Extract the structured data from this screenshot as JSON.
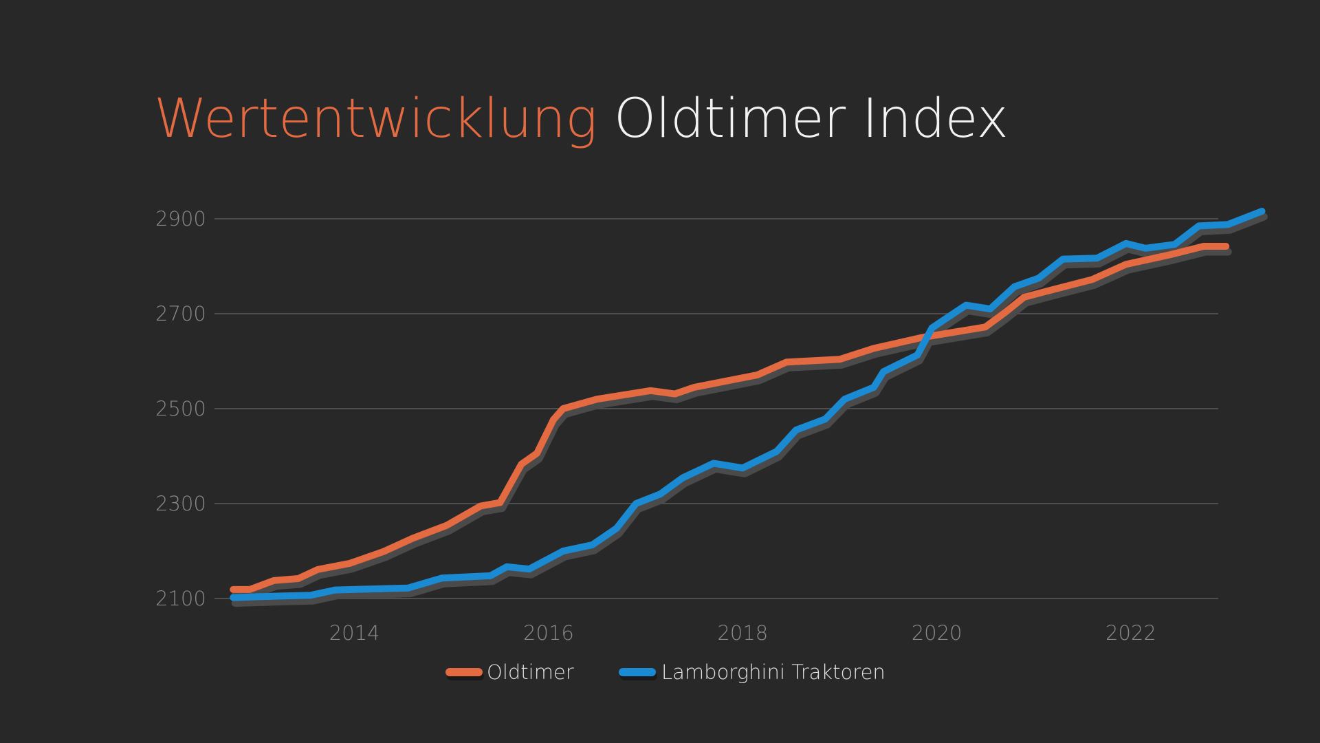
{
  "title": {
    "accent": "Wertentwicklung",
    "rest": "Oldtimer Index"
  },
  "colors": {
    "background": "#282828",
    "Oldtimer": "#e46a41",
    "Lamborghini Traktoren": "#1a8bd3",
    "shadow": "#4a4a4a",
    "grid": "#4e4e4e"
  },
  "chart_data": {
    "type": "line",
    "title": "Wertentwicklung Oldtimer Index",
    "xlabel": "",
    "ylabel": "",
    "xlim": [
      2012.6,
      2022.9
    ],
    "ylim": [
      2100,
      2950
    ],
    "grid": true,
    "legend_position": "bottom-center",
    "x_ticks": [
      {
        "value": 2014,
        "label": "2014"
      },
      {
        "value": 2016,
        "label": "2016"
      },
      {
        "value": 2018,
        "label": "2018"
      },
      {
        "value": 2020,
        "label": "2020"
      },
      {
        "value": 2022,
        "label": "2022"
      }
    ],
    "y_ticks": [
      {
        "value": 2100,
        "label": "2100"
      },
      {
        "value": 2300,
        "label": "2300"
      },
      {
        "value": 2500,
        "label": "2500"
      },
      {
        "value": 2700,
        "label": "2700"
      },
      {
        "value": 2900,
        "label": "2900"
      }
    ],
    "series": [
      {
        "name": "Oldtimer",
        "color": "#e46a41",
        "points": [
          [
            2012.75,
            2119
          ],
          [
            2012.92,
            2119
          ],
          [
            2013.17,
            2138
          ],
          [
            2013.42,
            2142
          ],
          [
            2013.62,
            2161
          ],
          [
            2013.95,
            2174
          ],
          [
            2014.3,
            2199
          ],
          [
            2014.6,
            2227
          ],
          [
            2014.95,
            2254
          ],
          [
            2015.3,
            2295
          ],
          [
            2015.5,
            2302
          ],
          [
            2015.72,
            2383
          ],
          [
            2015.88,
            2406
          ],
          [
            2016.05,
            2477
          ],
          [
            2016.15,
            2500
          ],
          [
            2016.5,
            2520
          ],
          [
            2017.05,
            2538
          ],
          [
            2017.3,
            2531
          ],
          [
            2017.5,
            2545
          ],
          [
            2018.15,
            2571
          ],
          [
            2018.45,
            2598
          ],
          [
            2019.0,
            2604
          ],
          [
            2019.35,
            2627
          ],
          [
            2019.85,
            2650
          ],
          [
            2020.5,
            2672
          ],
          [
            2020.7,
            2702
          ],
          [
            2020.9,
            2735
          ],
          [
            2021.2,
            2751
          ],
          [
            2021.6,
            2772
          ],
          [
            2021.95,
            2804
          ],
          [
            2022.4,
            2824
          ],
          [
            2022.75,
            2842
          ],
          [
            2022.98,
            2842
          ]
        ]
      },
      {
        "name": "Lamborghini Traktoren",
        "color": "#1a8bd3",
        "points": [
          [
            2012.75,
            2102
          ],
          [
            2013.2,
            2105
          ],
          [
            2013.55,
            2107
          ],
          [
            2013.8,
            2118
          ],
          [
            2014.55,
            2122
          ],
          [
            2014.9,
            2143
          ],
          [
            2015.4,
            2148
          ],
          [
            2015.57,
            2167
          ],
          [
            2015.8,
            2162
          ],
          [
            2016.15,
            2200
          ],
          [
            2016.45,
            2213
          ],
          [
            2016.7,
            2248
          ],
          [
            2016.9,
            2300
          ],
          [
            2017.15,
            2320
          ],
          [
            2017.38,
            2354
          ],
          [
            2017.7,
            2385
          ],
          [
            2018.0,
            2375
          ],
          [
            2018.35,
            2410
          ],
          [
            2018.55,
            2455
          ],
          [
            2018.85,
            2478
          ],
          [
            2019.05,
            2520
          ],
          [
            2019.35,
            2545
          ],
          [
            2019.45,
            2578
          ],
          [
            2019.8,
            2613
          ],
          [
            2019.95,
            2670
          ],
          [
            2020.3,
            2718
          ],
          [
            2020.55,
            2710
          ],
          [
            2020.8,
            2757
          ],
          [
            2021.05,
            2775
          ],
          [
            2021.3,
            2815
          ],
          [
            2021.65,
            2817
          ],
          [
            2021.95,
            2848
          ],
          [
            2022.15,
            2838
          ],
          [
            2022.45,
            2846
          ],
          [
            2022.7,
            2885
          ],
          [
            2023.0,
            2888
          ],
          [
            2023.35,
            2916
          ]
        ]
      }
    ]
  }
}
